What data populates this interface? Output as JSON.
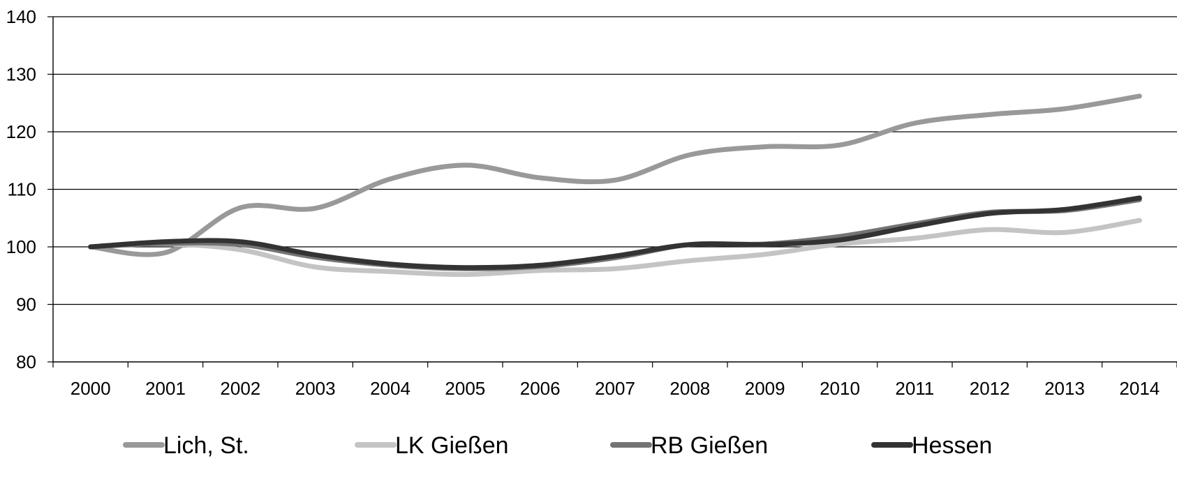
{
  "chart_data": {
    "type": "line",
    "title": "",
    "xlabel": "",
    "ylabel": "",
    "x": [
      "2000",
      "2001",
      "2002",
      "2003",
      "2004",
      "2005",
      "2006",
      "2007",
      "2008",
      "2009",
      "2010",
      "2011",
      "2012",
      "2013",
      "2014"
    ],
    "ylim": [
      80,
      140
    ],
    "yticks": [
      "80",
      "90",
      "100",
      "110",
      "120",
      "130",
      "140"
    ],
    "grid": "horizontal",
    "legend_position": "bottom",
    "series": [
      {
        "name": "Lich, St.",
        "color": "#999999",
        "values": [
          100,
          99.0,
          106.8,
          106.7,
          111.8,
          114.2,
          112.0,
          111.6,
          116.0,
          117.4,
          117.7,
          121.5,
          123.0,
          124.0,
          126.2
        ]
      },
      {
        "name": "LK Gießen",
        "color": "#c4c4c4",
        "values": [
          100,
          100.5,
          99.5,
          96.5,
          95.7,
          95.2,
          95.9,
          96.2,
          97.6,
          98.7,
          100.5,
          101.5,
          103.0,
          102.5,
          104.6
        ]
      },
      {
        "name": "RB Gießen",
        "color": "#747474",
        "values": [
          100,
          100.6,
          100.4,
          98.2,
          96.8,
          96.2,
          96.6,
          98.1,
          100.4,
          100.5,
          101.8,
          104.0,
          106.0,
          106.3,
          108.2
        ]
      },
      {
        "name": "Hessen",
        "color": "#333333",
        "values": [
          100,
          100.9,
          100.9,
          98.6,
          97.0,
          96.4,
          96.8,
          98.4,
          100.4,
          100.4,
          101.2,
          103.6,
          105.8,
          106.5,
          108.5
        ]
      }
    ]
  }
}
